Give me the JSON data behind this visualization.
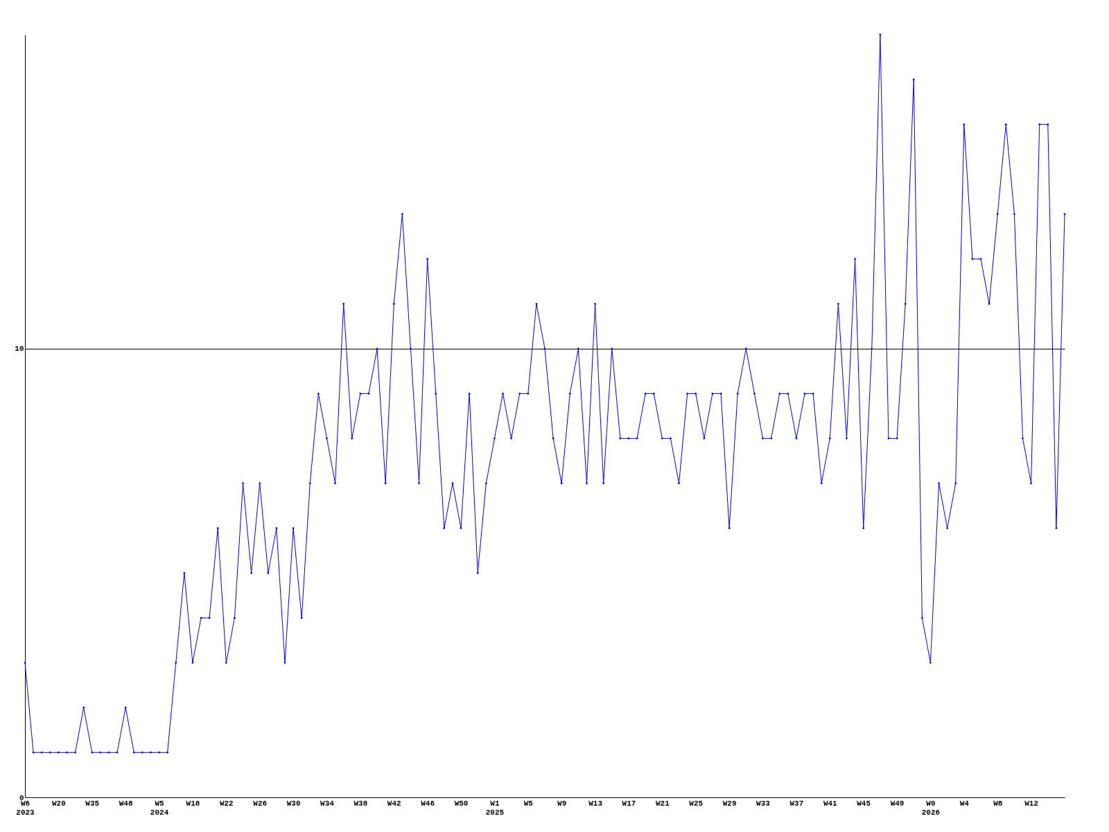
{
  "chart_data": {
    "type": "line",
    "categories": [
      "W6\n2023",
      null,
      null,
      null,
      "W20",
      null,
      null,
      null,
      "W35",
      null,
      null,
      null,
      "W48",
      null,
      null,
      null,
      "W5\n2024",
      null,
      null,
      null,
      "W18",
      null,
      null,
      null,
      "W22",
      null,
      null,
      null,
      "W26",
      null,
      null,
      null,
      "W30",
      null,
      null,
      null,
      "W34",
      null,
      null,
      null,
      "W38",
      null,
      null,
      null,
      "W42",
      null,
      null,
      null,
      "W46",
      null,
      null,
      null,
      "W50",
      null,
      null,
      null,
      "W1\n2025",
      null,
      null,
      null,
      "W5",
      null,
      null,
      null,
      "W9",
      null,
      null,
      null,
      "W13",
      null,
      null,
      null,
      "W17",
      null,
      null,
      null,
      "W21",
      null,
      null,
      null,
      "W25",
      null,
      null,
      null,
      "W29",
      null,
      null,
      null,
      "W33",
      null,
      null,
      null,
      "W37",
      null,
      null,
      null,
      "W41",
      null,
      null,
      null,
      "W45",
      null,
      null,
      null,
      "W49",
      null,
      null,
      null,
      "W0\n2026",
      null,
      null,
      null,
      "W4",
      null,
      null,
      null,
      "W8",
      null,
      null,
      null,
      "W12",
      null,
      null,
      null,
      null
    ],
    "series": [
      {
        "color": "#0000ff",
        "values": [
          3,
          1,
          1,
          1,
          1,
          1,
          1,
          2,
          1,
          1,
          1,
          1,
          2,
          1,
          1,
          1,
          1,
          1,
          3,
          5,
          3,
          4,
          4,
          6,
          3,
          4,
          7,
          5,
          7,
          5,
          6,
          3,
          6,
          4,
          7,
          9,
          8,
          7,
          11,
          8,
          9,
          9,
          10,
          7,
          11,
          13,
          10,
          7,
          12,
          9,
          6,
          7,
          6,
          9,
          5,
          7,
          8,
          9,
          8,
          9,
          9,
          11,
          10,
          8,
          7,
          9,
          10,
          7,
          11,
          7,
          10,
          8,
          8,
          8,
          9,
          9,
          8,
          8,
          7,
          9,
          9,
          8,
          9,
          9,
          6,
          9,
          10,
          9,
          8,
          8,
          9,
          9,
          8,
          9,
          9,
          7,
          8,
          11,
          8,
          12,
          6,
          10,
          17,
          8,
          8,
          11,
          16,
          4,
          3,
          7,
          6,
          7,
          15,
          12,
          12,
          11,
          13,
          15,
          13,
          8,
          7,
          15,
          15,
          6,
          13
        ]
      }
    ],
    "ylim": [
      0,
      17
    ],
    "yticks": [
      0,
      10
    ],
    "grid": "y",
    "marker": "diamond",
    "line_style": "solid",
    "legend": false
  }
}
